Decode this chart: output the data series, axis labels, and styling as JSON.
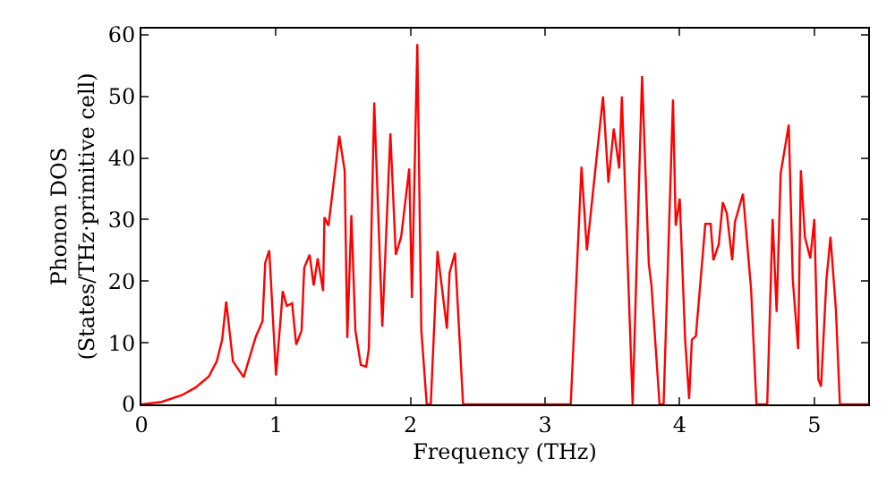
{
  "chart_data": {
    "type": "line",
    "xlabel": "Frequency (THz)",
    "ylabel": "Phonon DOS\n(States/THz·primitive cell)",
    "xlim": [
      0,
      5.4
    ],
    "ylim": [
      0,
      61
    ],
    "xticks": [
      0,
      1,
      2,
      3,
      4,
      5
    ],
    "yticks": [
      0,
      10,
      20,
      30,
      40,
      50,
      60
    ],
    "marker": "none",
    "line_style": "solid",
    "series": [
      {
        "color": "#ff0000",
        "x": [
          0,
          0.15,
          0.3,
          0.4,
          0.5,
          0.56,
          0.6,
          0.63,
          0.68,
          0.76,
          0.85,
          0.9,
          0.92,
          0.95,
          1.0,
          1.04,
          1.05,
          1.08,
          1.12,
          1.15,
          1.19,
          1.21,
          1.25,
          1.28,
          1.31,
          1.35,
          1.36,
          1.39,
          1.47,
          1.51,
          1.53,
          1.56,
          1.59,
          1.63,
          1.67,
          1.69,
          1.73,
          1.79,
          1.85,
          1.89,
          1.93,
          1.99,
          2.01,
          2.05,
          2.08,
          2.12,
          2.15,
          2.2,
          2.27,
          2.29,
          2.33,
          2.39,
          3.19,
          3.27,
          3.31,
          3.43,
          3.47,
          3.51,
          3.55,
          3.57,
          3.65,
          3.72,
          3.77,
          3.79,
          3.85,
          3.88,
          3.95,
          3.97,
          4.0,
          4.04,
          4.07,
          4.09,
          4.12,
          4.19,
          4.23,
          4.25,
          4.29,
          4.32,
          4.35,
          4.39,
          4.41,
          4.47,
          4.53,
          4.57,
          4.65,
          4.69,
          4.72,
          4.75,
          4.81,
          4.84,
          4.88,
          4.9,
          4.93,
          4.97,
          5.0,
          5.03,
          5.05,
          5.09,
          5.12,
          5.16,
          5.19,
          5.4
        ],
        "values": [
          0,
          0.4,
          1.5,
          2.7,
          4.5,
          7,
          10.5,
          16.7,
          7,
          4.4,
          11,
          13.5,
          23,
          25,
          4.7,
          15.5,
          18.4,
          16,
          16.4,
          9.7,
          12,
          22.2,
          24.3,
          19.3,
          23.7,
          18.4,
          30.4,
          29,
          43.6,
          38,
          10.8,
          30.7,
          12,
          6.4,
          6.1,
          9,
          49,
          12.6,
          44,
          24.3,
          27.2,
          38.3,
          17.3,
          58.5,
          12,
          0,
          0,
          24.9,
          12.3,
          21.4,
          24.6,
          0,
          0,
          38.6,
          25,
          50,
          36,
          44.8,
          38.3,
          50,
          0,
          53.3,
          22.8,
          19.3,
          0,
          0,
          49.5,
          29,
          33.4,
          10.5,
          0.9,
          10.5,
          11.1,
          29.3,
          29.3,
          23.4,
          26,
          32.8,
          31,
          23.4,
          29.6,
          34.2,
          18.7,
          0,
          0,
          30.1,
          15,
          37.5,
          45.4,
          20.2,
          9,
          38,
          27.2,
          23.7,
          30.1,
          4.1,
          2.9,
          20.2,
          27.2,
          15.5,
          0,
          0
        ]
      }
    ]
  }
}
